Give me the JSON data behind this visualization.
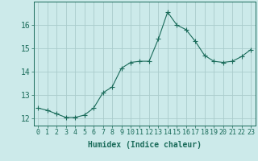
{
  "x": [
    0,
    1,
    2,
    3,
    4,
    5,
    6,
    7,
    8,
    9,
    10,
    11,
    12,
    13,
    14,
    15,
    16,
    17,
    18,
    19,
    20,
    21,
    22,
    23
  ],
  "y": [
    12.45,
    12.35,
    12.2,
    12.05,
    12.05,
    12.15,
    12.45,
    13.1,
    13.35,
    14.15,
    14.4,
    14.45,
    14.45,
    15.4,
    16.55,
    16.0,
    15.8,
    15.3,
    14.7,
    14.45,
    14.4,
    14.45,
    14.65,
    14.95
  ],
  "line_color": "#1a6b5a",
  "marker": "+",
  "marker_size": 4,
  "bg_color": "#cceaea",
  "grid_color": "#aacccc",
  "xlabel": "Humidex (Indice chaleur)",
  "ylim": [
    11.7,
    17.0
  ],
  "xlim": [
    -0.5,
    23.5
  ],
  "yticks": [
    12,
    13,
    14,
    15,
    16
  ],
  "xtick_labels": [
    "0",
    "1",
    "2",
    "3",
    "4",
    "5",
    "6",
    "7",
    "8",
    "9",
    "10",
    "11",
    "12",
    "13",
    "14",
    "15",
    "16",
    "17",
    "18",
    "19",
    "20",
    "21",
    "22",
    "23"
  ],
  "tick_color": "#1a6b5a",
  "label_fontsize": 7,
  "tick_fontsize": 6
}
